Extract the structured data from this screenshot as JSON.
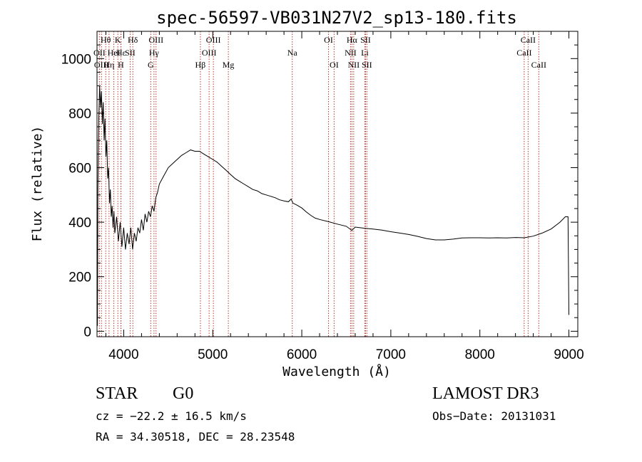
{
  "chart_data": {
    "type": "line",
    "title": "spec-56597-VB031N27V2_sp13-180.fits",
    "xlabel": "Wavelength (Å)",
    "ylabel": "Flux (relative)",
    "xlim": [
      3700,
      9100
    ],
    "ylim": [
      -20,
      1100
    ],
    "xticks": [
      4000,
      5000,
      6000,
      7000,
      8000,
      9000
    ],
    "xtick_labels": [
      "4000",
      "5000",
      "6000",
      "7000",
      "8000",
      "9000"
    ],
    "yticks": [
      0,
      200,
      400,
      600,
      800,
      1000
    ],
    "ytick_labels": [
      "0",
      "200",
      "400",
      "600",
      "800",
      "1000"
    ],
    "series": [
      {
        "name": "flux",
        "color": "#000000",
        "points": [
          [
            3705,
            20
          ],
          [
            3710,
            520
          ],
          [
            3720,
            780
          ],
          [
            3730,
            900
          ],
          [
            3740,
            820
          ],
          [
            3750,
            880
          ],
          [
            3760,
            760
          ],
          [
            3770,
            840
          ],
          [
            3780,
            700
          ],
          [
            3790,
            780
          ],
          [
            3800,
            640
          ],
          [
            3810,
            700
          ],
          [
            3820,
            560
          ],
          [
            3830,
            600
          ],
          [
            3840,
            470
          ],
          [
            3850,
            520
          ],
          [
            3860,
            420
          ],
          [
            3870,
            460
          ],
          [
            3880,
            380
          ],
          [
            3890,
            440
          ],
          [
            3900,
            360
          ],
          [
            3920,
            420
          ],
          [
            3940,
            330
          ],
          [
            3960,
            400
          ],
          [
            3980,
            310
          ],
          [
            4000,
            380
          ],
          [
            4020,
            300
          ],
          [
            4040,
            360
          ],
          [
            4060,
            320
          ],
          [
            4080,
            380
          ],
          [
            4100,
            300
          ],
          [
            4120,
            360
          ],
          [
            4140,
            330
          ],
          [
            4160,
            380
          ],
          [
            4180,
            360
          ],
          [
            4200,
            410
          ],
          [
            4220,
            370
          ],
          [
            4240,
            430
          ],
          [
            4260,
            400
          ],
          [
            4280,
            440
          ],
          [
            4300,
            420
          ],
          [
            4320,
            460
          ],
          [
            4340,
            440
          ],
          [
            4360,
            490
          ],
          [
            4380,
            510
          ],
          [
            4400,
            540
          ],
          [
            4450,
            570
          ],
          [
            4500,
            600
          ],
          [
            4550,
            615
          ],
          [
            4600,
            630
          ],
          [
            4650,
            645
          ],
          [
            4700,
            655
          ],
          [
            4750,
            665
          ],
          [
            4800,
            660
          ],
          [
            4850,
            660
          ],
          [
            4900,
            650
          ],
          [
            4950,
            640
          ],
          [
            5000,
            630
          ],
          [
            5050,
            620
          ],
          [
            5100,
            605
          ],
          [
            5150,
            590
          ],
          [
            5200,
            575
          ],
          [
            5250,
            560
          ],
          [
            5300,
            550
          ],
          [
            5350,
            540
          ],
          [
            5400,
            530
          ],
          [
            5450,
            520
          ],
          [
            5500,
            515
          ],
          [
            5550,
            505
          ],
          [
            5600,
            500
          ],
          [
            5650,
            495
          ],
          [
            5700,
            490
          ],
          [
            5750,
            482
          ],
          [
            5800,
            478
          ],
          [
            5850,
            475
          ],
          [
            5880,
            485
          ],
          [
            5900,
            470
          ],
          [
            5950,
            462
          ],
          [
            6000,
            452
          ],
          [
            6050,
            438
          ],
          [
            6100,
            425
          ],
          [
            6150,
            415
          ],
          [
            6200,
            410
          ],
          [
            6300,
            402
          ],
          [
            6400,
            393
          ],
          [
            6500,
            385
          ],
          [
            6562,
            370
          ],
          [
            6600,
            382
          ],
          [
            6700,
            378
          ],
          [
            6800,
            375
          ],
          [
            6900,
            371
          ],
          [
            7000,
            365
          ],
          [
            7100,
            360
          ],
          [
            7200,
            355
          ],
          [
            7300,
            348
          ],
          [
            7400,
            340
          ],
          [
            7500,
            335
          ],
          [
            7600,
            335
          ],
          [
            7700,
            338
          ],
          [
            7800,
            342
          ],
          [
            7900,
            343
          ],
          [
            8000,
            343
          ],
          [
            8100,
            342
          ],
          [
            8200,
            343
          ],
          [
            8300,
            342
          ],
          [
            8400,
            344
          ],
          [
            8500,
            343
          ],
          [
            8600,
            349
          ],
          [
            8700,
            360
          ],
          [
            8800,
            375
          ],
          [
            8900,
            400
          ],
          [
            8960,
            420
          ],
          [
            8990,
            420
          ],
          [
            9000,
            60
          ]
        ]
      }
    ],
    "spectral_lines": [
      {
        "label": "Hθ",
        "wavelength": 3798,
        "row": 0
      },
      {
        "label": "OII",
        "wavelength": 3727,
        "row": 1
      },
      {
        "label": "OIII",
        "wavelength": 3750,
        "row": 2
      },
      {
        "label": "K",
        "wavelength": 3934,
        "row": 0
      },
      {
        "label": "Hε",
        "wavelength": 3970,
        "row": 1
      },
      {
        "label": "Hη",
        "wavelength": 3835,
        "row": 2
      },
      {
        "label": "HeI",
        "wavelength": 3889,
        "row": 1
      },
      {
        "label": "H",
        "wavelength": 3968,
        "row": 2
      },
      {
        "label": "Hδ",
        "wavelength": 4102,
        "row": 0
      },
      {
        "label": "SII",
        "wavelength": 4072,
        "row": 1
      },
      {
        "label": "OIII",
        "wavelength": 4363,
        "row": 0
      },
      {
        "label": "Hγ",
        "wavelength": 4340,
        "row": 1
      },
      {
        "label": "G",
        "wavelength": 4304,
        "row": 2
      },
      {
        "label": "OIII",
        "wavelength": 5007,
        "row": 0
      },
      {
        "label": "OIII",
        "wavelength": 4959,
        "row": 1
      },
      {
        "label": "Hβ",
        "wavelength": 4861,
        "row": 2
      },
      {
        "label": "Mg",
        "wavelength": 5175,
        "row": 2
      },
      {
        "label": "Na",
        "wavelength": 5893,
        "row": 1
      },
      {
        "label": "OI",
        "wavelength": 6300,
        "row": 0
      },
      {
        "label": "OI",
        "wavelength": 6363,
        "row": 2
      },
      {
        "label": "Hα",
        "wavelength": 6563,
        "row": 0
      },
      {
        "label": "NII",
        "wavelength": 6548,
        "row": 1
      },
      {
        "label": "NII",
        "wavelength": 6583,
        "row": 2
      },
      {
        "label": "SII",
        "wavelength": 6716,
        "row": 0
      },
      {
        "label": "Li",
        "wavelength": 6708,
        "row": 1
      },
      {
        "label": "SII",
        "wavelength": 6731,
        "row": 2
      },
      {
        "label": "CaII",
        "wavelength": 8542,
        "row": 0
      },
      {
        "label": "CaII",
        "wavelength": 8498,
        "row": 1
      },
      {
        "label": "CaII",
        "wavelength": 8662,
        "row": 2
      }
    ],
    "line_color": "#c0392b"
  },
  "info": {
    "class": "STAR",
    "subclass": "G0",
    "survey": "LAMOST DR3",
    "cz": "cz = −22.2 ± 16.5 km/s",
    "obs_date": "Obs−Date: 20131031",
    "coords": "RA =  34.30518, DEC =  28.23548"
  }
}
